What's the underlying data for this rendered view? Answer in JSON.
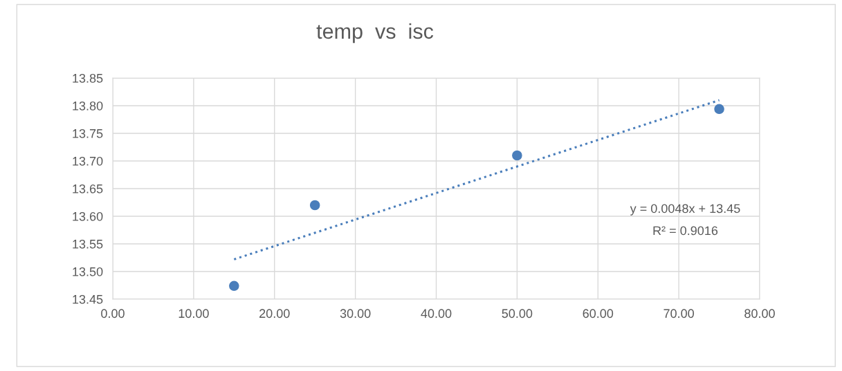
{
  "chart_data": {
    "type": "scatter",
    "title": "temp  vs  isc",
    "x": [
      15,
      25,
      50,
      75
    ],
    "series": [
      {
        "color": "#4a7ebb",
        "values": [
          13.474,
          13.62,
          13.71,
          13.794
        ],
        "marker": "circle"
      },
      {
        "type": "line",
        "color": "#4a7ebb",
        "x": [
          15,
          75
        ],
        "values": [
          13.522,
          13.81
        ],
        "line_style": "dotted",
        "marker": "none"
      }
    ],
    "xlim": [
      0,
      80
    ],
    "xticks": [
      {
        "value": 0,
        "label": "0.00"
      },
      {
        "value": 10,
        "label": "10.00"
      },
      {
        "value": 20,
        "label": "20.00"
      },
      {
        "value": 30,
        "label": "30.00"
      },
      {
        "value": 40,
        "label": "40.00"
      },
      {
        "value": 50,
        "label": "50.00"
      },
      {
        "value": 60,
        "label": "60.00"
      },
      {
        "value": 70,
        "label": "70.00"
      },
      {
        "value": 80,
        "label": "80.00"
      }
    ],
    "ylim": [
      13.45,
      13.85
    ],
    "yticks": [
      {
        "value": 13.45,
        "label": "13.45"
      },
      {
        "value": 13.5,
        "label": "13.50"
      },
      {
        "value": 13.55,
        "label": "13.55"
      },
      {
        "value": 13.6,
        "label": "13.60"
      },
      {
        "value": 13.65,
        "label": "13.65"
      },
      {
        "value": 13.7,
        "label": "13.70"
      },
      {
        "value": 13.75,
        "label": "13.75"
      },
      {
        "value": 13.8,
        "label": "13.80"
      },
      {
        "value": 13.85,
        "label": "13.85"
      }
    ],
    "annotations": [
      "y = 0.0048x + 13.45",
      "R² = 0.9016"
    ],
    "grid": true
  }
}
